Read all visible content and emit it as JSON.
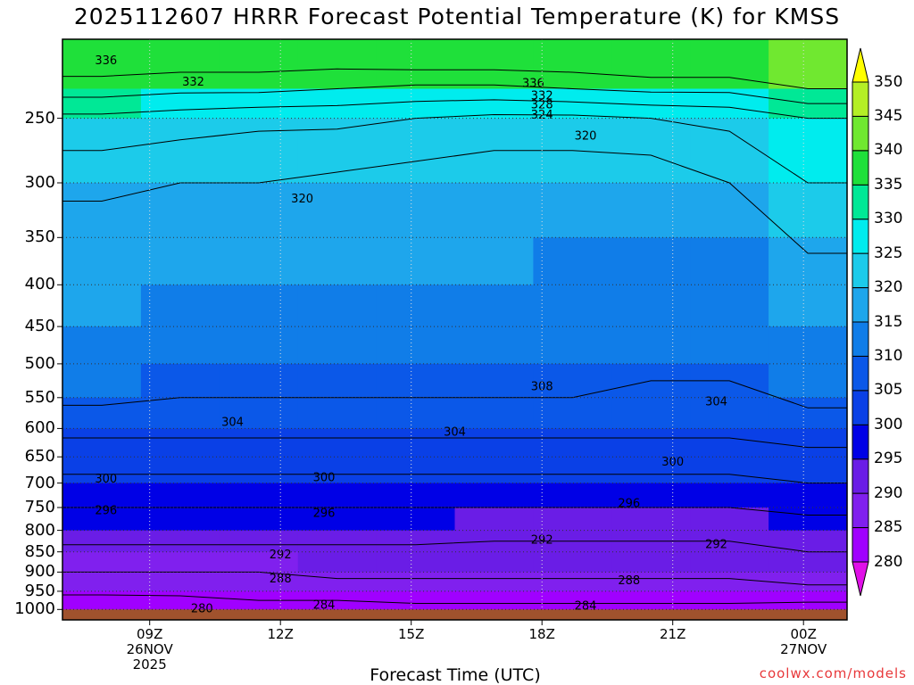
{
  "title": "2025112607 HRRR Forecast Potential Temperature (K) for KMSS",
  "xlabel": "Forecast Time (UTC)",
  "credit": "coolwx.com/models",
  "colors": {
    "surface": "#a0522d",
    "contour": "#000000",
    "grid": "#333333"
  },
  "chart_data": {
    "type": "heatmap",
    "variable": "Potential Temperature (K)",
    "station": "KMSS",
    "run": "2025112607",
    "y_axis": {
      "scale": "log",
      "inverted": true,
      "ticks": [
        250,
        300,
        350,
        400,
        450,
        500,
        550,
        600,
        650,
        700,
        750,
        800,
        850,
        900,
        950,
        1000
      ],
      "range_top_approx": 200,
      "range_bottom": 1030
    },
    "x_axis": {
      "start_hour_approx": 7,
      "end_hour_approx": 25,
      "ticks": [
        {
          "hour": 9,
          "lines": [
            "09Z",
            "26NOV",
            "2025"
          ]
        },
        {
          "hour": 12,
          "lines": [
            "12Z"
          ]
        },
        {
          "hour": 15,
          "lines": [
            "15Z"
          ]
        },
        {
          "hour": 18,
          "lines": [
            "18Z"
          ]
        },
        {
          "hour": 21,
          "lines": [
            "21Z"
          ]
        },
        {
          "hour": 24,
          "lines": [
            "00Z",
            "27NOV"
          ]
        }
      ]
    },
    "colorbar": {
      "levels": [
        280,
        285,
        290,
        295,
        300,
        305,
        310,
        315,
        320,
        325,
        330,
        335,
        340,
        345,
        350
      ],
      "colors": [
        "#e010e8",
        "#a000ff",
        "#8020ee",
        "#6a1de6",
        "#0000e6",
        "#0a40e6",
        "#0b58e8",
        "#107de8",
        "#1ea6ec",
        "#1ccbea",
        "#00ecee",
        "#00e896",
        "#1fe03a",
        "#70e830",
        "#b4ef26",
        "#ffff00"
      ],
      "extend": "both"
    },
    "contour_interval": 4,
    "contours": [
      {
        "value": 280,
        "labels": [
          {
            "hour": 10.2,
            "p": 995
          }
        ]
      },
      {
        "value": 284,
        "labels": [
          {
            "hour": 13,
            "p": 985
          },
          {
            "hour": 19,
            "p": 988
          }
        ]
      },
      {
        "value": 288,
        "labels": [
          {
            "hour": 12,
            "p": 915
          },
          {
            "hour": 20,
            "p": 920
          }
        ]
      },
      {
        "value": 292,
        "labels": [
          {
            "hour": 12,
            "p": 855
          },
          {
            "hour": 18,
            "p": 820
          },
          {
            "hour": 22,
            "p": 830
          }
        ]
      },
      {
        "value": 296,
        "labels": [
          {
            "hour": 8,
            "p": 755
          },
          {
            "hour": 13,
            "p": 760
          },
          {
            "hour": 20,
            "p": 740
          }
        ]
      },
      {
        "value": 300,
        "labels": [
          {
            "hour": 8,
            "p": 690
          },
          {
            "hour": 13,
            "p": 688
          },
          {
            "hour": 21,
            "p": 658
          }
        ]
      },
      {
        "value": 304,
        "labels": [
          {
            "hour": 10.9,
            "p": 588
          },
          {
            "hour": 16,
            "p": 605
          },
          {
            "hour": 22,
            "p": 555
          }
        ]
      },
      {
        "value": 308,
        "labels": [
          {
            "hour": 18,
            "p": 532
          }
        ]
      },
      {
        "value": 320,
        "labels": [
          {
            "hour": 12.5,
            "p": 313
          },
          {
            "hour": 19,
            "p": 262
          }
        ]
      },
      {
        "value": 324,
        "labels": [
          {
            "hour": 18,
            "p": 247
          }
        ]
      },
      {
        "value": 328,
        "labels": [
          {
            "hour": 18,
            "p": 240
          }
        ]
      },
      {
        "value": 332,
        "labels": [
          {
            "hour": 10,
            "p": 225
          },
          {
            "hour": 18,
            "p": 234
          }
        ]
      },
      {
        "value": 336,
        "labels": [
          {
            "hour": 8,
            "p": 212
          },
          {
            "hour": 17.8,
            "p": 226
          }
        ]
      }
    ],
    "background_levels": [
      {
        "p": 200,
        "theta": [
          342,
          342,
          342,
          342,
          344,
          344,
          344,
          346,
          346,
          347
        ]
      },
      {
        "p": 230,
        "theta": [
          334,
          333,
          333,
          332,
          331,
          331,
          332,
          333,
          333,
          336
        ]
      },
      {
        "p": 250,
        "theta": [
          327,
          326,
          325,
          325,
          324,
          323,
          323,
          324,
          325,
          328
        ]
      },
      {
        "p": 300,
        "theta": [
          321,
          320,
          320,
          319,
          318,
          317,
          317,
          317,
          320,
          324
        ]
      },
      {
        "p": 350,
        "theta": [
          318,
          318,
          317,
          317,
          316,
          316,
          315,
          316,
          316,
          321
        ]
      },
      {
        "p": 400,
        "theta": [
          316,
          315,
          315,
          314,
          314,
          314,
          314,
          313,
          313,
          318
        ]
      },
      {
        "p": 450,
        "theta": [
          314,
          313,
          313,
          312,
          312,
          312,
          312,
          312,
          311,
          315
        ]
      },
      {
        "p": 500,
        "theta": [
          311,
          311,
          311,
          311,
          310,
          310,
          310,
          309,
          309,
          312
        ]
      },
      {
        "p": 550,
        "theta": [
          309,
          308,
          308,
          308,
          308,
          308,
          308,
          307,
          307,
          309
        ]
      },
      {
        "p": 600,
        "theta": [
          305,
          305,
          305,
          305,
          305,
          305,
          305,
          305,
          305,
          306
        ]
      },
      {
        "p": 650,
        "theta": [
          302,
          302,
          302,
          302,
          302,
          302,
          302,
          302,
          302,
          303
        ]
      },
      {
        "p": 700,
        "theta": [
          299,
          299,
          299,
          299,
          299,
          299,
          299,
          299,
          299,
          300
        ]
      },
      {
        "p": 750,
        "theta": [
          296,
          296,
          296,
          296,
          296,
          296,
          296,
          296,
          296,
          297
        ]
      },
      {
        "p": 800,
        "theta": [
          294,
          294,
          294,
          294,
          294,
          293,
          293,
          293,
          293,
          294
        ]
      },
      {
        "p": 850,
        "theta": [
          291,
          291,
          291,
          291,
          291,
          291,
          291,
          291,
          291,
          292
        ]
      },
      {
        "p": 900,
        "theta": [
          288,
          288,
          288,
          289,
          289,
          289,
          289,
          289,
          289,
          290
        ]
      },
      {
        "p": 950,
        "theta": [
          285,
          285,
          286,
          286,
          286,
          286,
          286,
          286,
          286,
          287
        ]
      },
      {
        "p": 1000,
        "theta": [
          280,
          281,
          282,
          282,
          283,
          283,
          283,
          283,
          283,
          282
        ]
      }
    ]
  }
}
